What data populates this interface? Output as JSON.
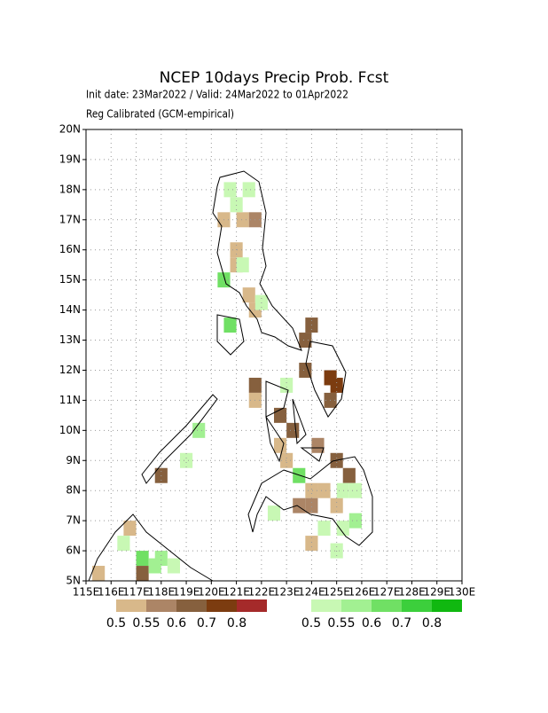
{
  "header": {
    "title": "NCEP 10days Precip Prob. Fcst",
    "subtitle": "Init date: 23Mar2022 / Valid: 24Mar2022 to 01Apr2022",
    "note": "Reg Calibrated (GCM-empirical)"
  },
  "map": {
    "xlim": [
      115,
      130
    ],
    "ylim": [
      5,
      20
    ],
    "xticks": [
      {
        "value": 115,
        "label": "115E"
      },
      {
        "value": 116,
        "label": "116E"
      },
      {
        "value": 117,
        "label": "117E"
      },
      {
        "value": 118,
        "label": "118E"
      },
      {
        "value": 119,
        "label": "119E"
      },
      {
        "value": 120,
        "label": "120E"
      },
      {
        "value": 121,
        "label": "121E"
      },
      {
        "value": 122,
        "label": "122E"
      },
      {
        "value": 123,
        "label": "123E"
      },
      {
        "value": 124,
        "label": "124E"
      },
      {
        "value": 125,
        "label": "125E"
      },
      {
        "value": 126,
        "label": "126E"
      },
      {
        "value": 127,
        "label": "127E"
      },
      {
        "value": 128,
        "label": "128E"
      },
      {
        "value": 129,
        "label": "129E"
      },
      {
        "value": 130,
        "label": "130E"
      }
    ],
    "yticks": [
      {
        "value": 5,
        "label": "5N"
      },
      {
        "value": 6,
        "label": "6N"
      },
      {
        "value": 7,
        "label": "7N"
      },
      {
        "value": 8,
        "label": "8N"
      },
      {
        "value": 9,
        "label": "9N"
      },
      {
        "value": 10,
        "label": "10N"
      },
      {
        "value": 11,
        "label": "11N"
      },
      {
        "value": 12,
        "label": "12N"
      },
      {
        "value": 13,
        "label": "13N"
      },
      {
        "value": 14,
        "label": "14N"
      },
      {
        "value": 15,
        "label": "15N"
      },
      {
        "value": 16,
        "label": "16N"
      },
      {
        "value": 17,
        "label": "17N"
      },
      {
        "value": 18,
        "label": "18N"
      },
      {
        "value": 19,
        "label": "19N"
      },
      {
        "value": 20,
        "label": "20N"
      }
    ],
    "grid": true,
    "cells": [
      {
        "kind": "dry",
        "lon": 120.25,
        "lat": 16.75,
        "prob": 0.5
      },
      {
        "kind": "dry",
        "lon": 121.0,
        "lat": 16.75,
        "prob": 0.5
      },
      {
        "kind": "dry",
        "lon": 121.5,
        "lat": 16.75,
        "prob": 0.55
      },
      {
        "kind": "dry",
        "lon": 120.75,
        "lat": 15.75,
        "prob": 0.5
      },
      {
        "kind": "dry",
        "lon": 120.75,
        "lat": 15.25,
        "prob": 0.5
      },
      {
        "kind": "dry",
        "lon": 121.25,
        "lat": 14.25,
        "prob": 0.5
      },
      {
        "kind": "dry",
        "lon": 121.5,
        "lat": 13.75,
        "prob": 0.5
      },
      {
        "kind": "dry",
        "lon": 123.75,
        "lat": 13.25,
        "prob": 0.6
      },
      {
        "kind": "dry",
        "lon": 123.5,
        "lat": 12.75,
        "prob": 0.6
      },
      {
        "kind": "dry",
        "lon": 123.5,
        "lat": 11.75,
        "prob": 0.6
      },
      {
        "kind": "dry",
        "lon": 124.5,
        "lat": 11.5,
        "prob": 0.7
      },
      {
        "kind": "dry",
        "lon": 124.75,
        "lat": 11.25,
        "prob": 0.7
      },
      {
        "kind": "dry",
        "lon": 124.5,
        "lat": 10.75,
        "prob": 0.6
      },
      {
        "kind": "dry",
        "lon": 121.5,
        "lat": 11.25,
        "prob": 0.6
      },
      {
        "kind": "dry",
        "lon": 121.5,
        "lat": 10.75,
        "prob": 0.5
      },
      {
        "kind": "dry",
        "lon": 122.5,
        "lat": 10.25,
        "prob": 0.6
      },
      {
        "kind": "dry",
        "lon": 123.0,
        "lat": 9.75,
        "prob": 0.6
      },
      {
        "kind": "dry",
        "lon": 122.5,
        "lat": 9.25,
        "prob": 0.5
      },
      {
        "kind": "dry",
        "lon": 122.75,
        "lat": 8.75,
        "prob": 0.5
      },
      {
        "kind": "dry",
        "lon": 124.0,
        "lat": 9.25,
        "prob": 0.55
      },
      {
        "kind": "dry",
        "lon": 124.75,
        "lat": 8.75,
        "prob": 0.6
      },
      {
        "kind": "dry",
        "lon": 125.25,
        "lat": 8.25,
        "prob": 0.6
      },
      {
        "kind": "dry",
        "lon": 123.75,
        "lat": 7.75,
        "prob": 0.5
      },
      {
        "kind": "dry",
        "lon": 124.25,
        "lat": 7.75,
        "prob": 0.5
      },
      {
        "kind": "dry",
        "lon": 123.25,
        "lat": 7.25,
        "prob": 0.55
      },
      {
        "kind": "dry",
        "lon": 123.75,
        "lat": 7.25,
        "prob": 0.55
      },
      {
        "kind": "dry",
        "lon": 124.75,
        "lat": 7.25,
        "prob": 0.5
      },
      {
        "kind": "dry",
        "lon": 123.75,
        "lat": 6.0,
        "prob": 0.5
      },
      {
        "kind": "dry",
        "lon": 115.25,
        "lat": 5.0,
        "prob": 0.5
      },
      {
        "kind": "dry",
        "lon": 116.5,
        "lat": 6.5,
        "prob": 0.5
      },
      {
        "kind": "dry",
        "lon": 117.0,
        "lat": 5.0,
        "prob": 0.6
      },
      {
        "kind": "dry",
        "lon": 117.75,
        "lat": 8.25,
        "prob": 0.6
      },
      {
        "kind": "wet",
        "lon": 120.5,
        "lat": 17.75,
        "prob": 0.5
      },
      {
        "kind": "wet",
        "lon": 121.25,
        "lat": 17.75,
        "prob": 0.5
      },
      {
        "kind": "wet",
        "lon": 120.75,
        "lat": 17.25,
        "prob": 0.5
      },
      {
        "kind": "wet",
        "lon": 121.0,
        "lat": 15.25,
        "prob": 0.5
      },
      {
        "kind": "wet",
        "lon": 120.25,
        "lat": 14.75,
        "prob": 0.6
      },
      {
        "kind": "wet",
        "lon": 120.5,
        "lat": 13.25,
        "prob": 0.6
      },
      {
        "kind": "wet",
        "lon": 121.75,
        "lat": 14.0,
        "prob": 0.5
      },
      {
        "kind": "wet",
        "lon": 122.75,
        "lat": 11.25,
        "prob": 0.5
      },
      {
        "kind": "wet",
        "lon": 123.25,
        "lat": 8.25,
        "prob": 0.6
      },
      {
        "kind": "wet",
        "lon": 122.25,
        "lat": 7.0,
        "prob": 0.5
      },
      {
        "kind": "wet",
        "lon": 124.25,
        "lat": 6.5,
        "prob": 0.5
      },
      {
        "kind": "wet",
        "lon": 125.0,
        "lat": 6.5,
        "prob": 0.5
      },
      {
        "kind": "wet",
        "lon": 125.5,
        "lat": 6.75,
        "prob": 0.55
      },
      {
        "kind": "wet",
        "lon": 124.75,
        "lat": 5.75,
        "prob": 0.5
      },
      {
        "kind": "wet",
        "lon": 116.25,
        "lat": 6.0,
        "prob": 0.5
      },
      {
        "kind": "wet",
        "lon": 117.0,
        "lat": 5.5,
        "prob": 0.6
      },
      {
        "kind": "wet",
        "lon": 117.5,
        "lat": 5.25,
        "prob": 0.55
      },
      {
        "kind": "wet",
        "lon": 117.75,
        "lat": 5.5,
        "prob": 0.55
      },
      {
        "kind": "wet",
        "lon": 118.25,
        "lat": 5.25,
        "prob": 0.5
      },
      {
        "kind": "wet",
        "lon": 119.25,
        "lat": 9.75,
        "prob": 0.55
      },
      {
        "kind": "wet",
        "lon": 118.75,
        "lat": 8.75,
        "prob": 0.5
      },
      {
        "kind": "wet",
        "lon": 125.5,
        "lat": 7.75,
        "prob": 0.5
      },
      {
        "kind": "wet",
        "lon": 125.0,
        "lat": 7.75,
        "prob": 0.5
      }
    ]
  },
  "legend": {
    "dry": {
      "colors": [
        "#d8b88a",
        "#ac8566",
        "#86603e",
        "#7c3c10",
        "#a52a2a"
      ],
      "labels": [
        0.5,
        0.55,
        0.6,
        0.7,
        0.8
      ]
    },
    "wet": {
      "colors": [
        "#c8f8b4",
        "#a2f092",
        "#70e064",
        "#3ccf3c",
        "#10b810"
      ],
      "labels": [
        0.5,
        0.55,
        0.6,
        0.7,
        0.8
      ]
    }
  }
}
